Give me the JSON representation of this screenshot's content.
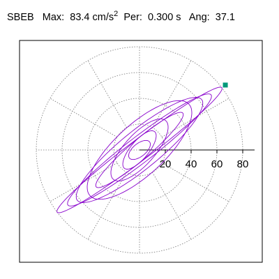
{
  "header": {
    "station": "SBEB",
    "max_label": "Max:",
    "max_value": "83.4",
    "max_unit": "cm/s",
    "max_unit_exp": "2",
    "per_label": "Per:",
    "per_value": "0.300 s",
    "ang_label": "Ang:",
    "ang_value": "37.1"
  },
  "chart_data": {
    "type": "polar",
    "title": "",
    "r_ticks": [
      20,
      40,
      60,
      80
    ],
    "r_tick_labels": [
      "20",
      "40",
      "60",
      "80"
    ],
    "r_max": 90,
    "grid_circles": [
      20,
      40,
      60,
      80
    ],
    "spoke_step_deg": 30,
    "grid": true,
    "max_amplitude": 83.4,
    "max_angle_deg": 37.1,
    "trace_color": "#8800cc",
    "marker_color": "#00997a",
    "trace_orbits": [
      {
        "a": 80,
        "b": 8.0,
        "phase": 0.0
      },
      {
        "a": 70,
        "b": 10.0,
        "phase": 0.4
      },
      {
        "a": 62,
        "b": 15.0,
        "phase": 0.9
      },
      {
        "a": 52,
        "b": 20.0,
        "phase": 1.5
      },
      {
        "a": 44,
        "b": 8.0,
        "phase": 2.1
      },
      {
        "a": 30,
        "b": 13.0,
        "phase": 2.6
      },
      {
        "a": 18,
        "b": 8.0,
        "phase": 3.1
      },
      {
        "a": 10,
        "b": 5.0,
        "phase": 0.3
      }
    ],
    "peak": {
      "amplitude": 83.4,
      "angle_deg": 37.1
    }
  }
}
